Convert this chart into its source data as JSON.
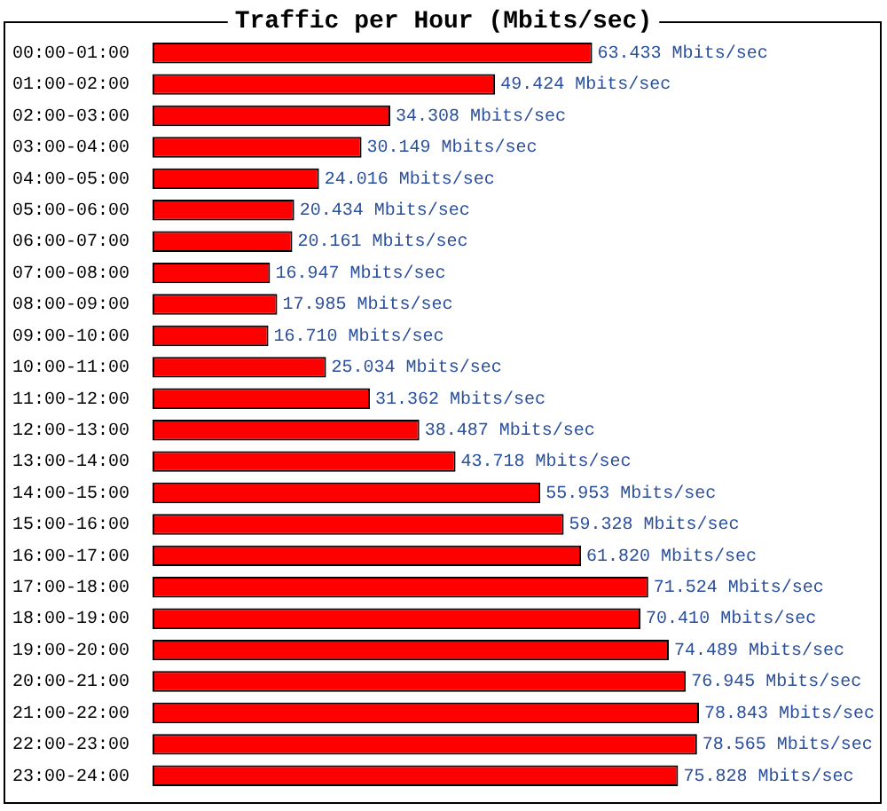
{
  "chart_data": {
    "type": "bar",
    "orientation": "horizontal",
    "title": "Traffic per Hour (Mbits/sec)",
    "tick_labels": "y",
    "legend": false,
    "categories": [
      "00:00-01:00",
      "01:00-02:00",
      "02:00-03:00",
      "03:00-04:00",
      "04:00-05:00",
      "05:00-06:00",
      "06:00-07:00",
      "07:00-08:00",
      "08:00-09:00",
      "09:00-10:00",
      "10:00-11:00",
      "11:00-12:00",
      "12:00-13:00",
      "13:00-14:00",
      "14:00-15:00",
      "15:00-16:00",
      "16:00-17:00",
      "17:00-18:00",
      "18:00-19:00",
      "19:00-20:00",
      "20:00-21:00",
      "21:00-22:00",
      "22:00-23:00",
      "23:00-24:00"
    ],
    "values": [
      63.433,
      49.424,
      34.308,
      30.149,
      24.016,
      20.434,
      20.161,
      16.947,
      17.985,
      16.71,
      25.034,
      31.362,
      38.487,
      43.718,
      55.953,
      59.328,
      61.82,
      71.524,
      70.41,
      74.489,
      76.945,
      78.843,
      78.565,
      75.828
    ],
    "value_labels": [
      "63.433 Mbits/sec",
      "49.424 Mbits/sec",
      "34.308 Mbits/sec",
      "30.149 Mbits/sec",
      "24.016 Mbits/sec",
      "20.434 Mbits/sec",
      "20.161 Mbits/sec",
      "16.947 Mbits/sec",
      "17.985 Mbits/sec",
      "16.710 Mbits/sec",
      "25.034 Mbits/sec",
      "31.362 Mbits/sec",
      "38.487 Mbits/sec",
      "43.718 Mbits/sec",
      "55.953 Mbits/sec",
      "59.328 Mbits/sec",
      "61.820 Mbits/sec",
      "71.524 Mbits/sec",
      "70.410 Mbits/sec",
      "74.489 Mbits/sec",
      "76.945 Mbits/sec",
      "78.843 Mbits/sec",
      "78.565 Mbits/sec",
      "75.828 Mbits/sec"
    ],
    "color": "#ff0000"
  }
}
